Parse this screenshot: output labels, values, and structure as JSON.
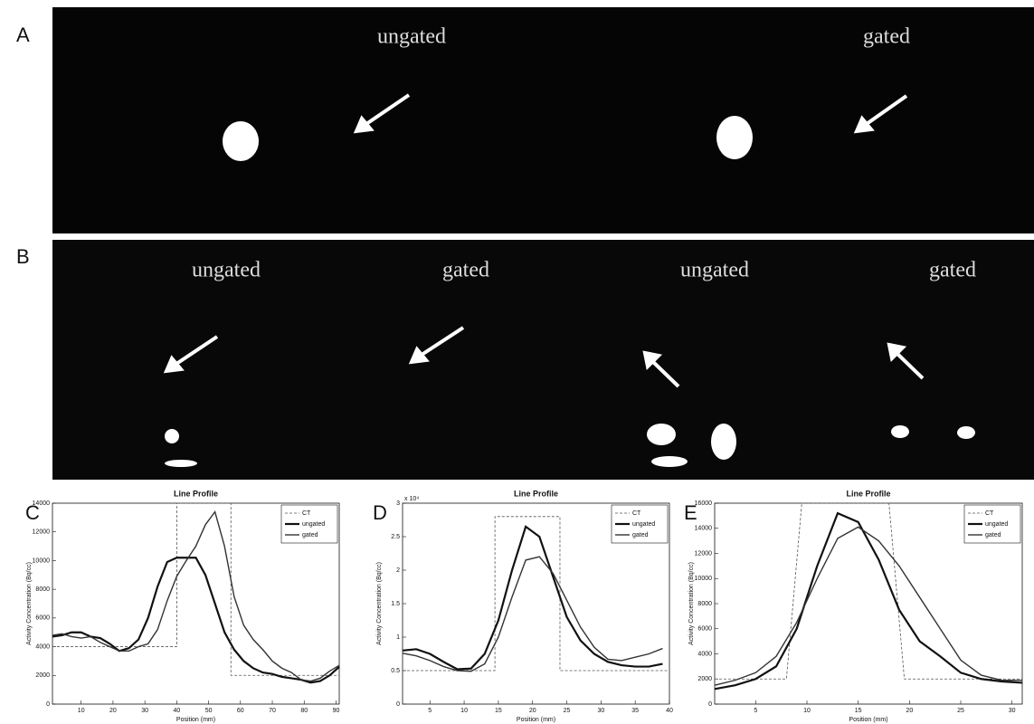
{
  "panel_labels": [
    "A",
    "B",
    "C",
    "D",
    "E"
  ],
  "image_labels": {
    "a": [
      "ungated",
      "gated"
    ],
    "b": [
      "ungated",
      "gated",
      "ungated",
      "gated"
    ]
  },
  "chart_data": [
    {
      "type": "line",
      "title": "Line Profile",
      "xlabel": "Position (mm)",
      "ylabel": "Activity Concentration (Bq/cc)",
      "xlim": [
        1,
        91
      ],
      "xticks": [
        10,
        20,
        30,
        40,
        50,
        60,
        70,
        80,
        90
      ],
      "ylim": [
        0,
        14000
      ],
      "yticks": [
        0,
        2000,
        4000,
        6000,
        8000,
        10000,
        12000,
        14000
      ],
      "legend": "upper right",
      "series": [
        {
          "name": "CT",
          "color": "#555555",
          "style": "dashed",
          "x": [
            1,
            40,
            40,
            57,
            57,
            91
          ],
          "values": [
            4000,
            4000,
            14000,
            14000,
            2000,
            2000
          ]
        },
        {
          "name": "ungated",
          "color": "#111111",
          "style": "thick",
          "x": [
            1,
            4,
            7,
            10,
            13,
            16,
            19,
            22,
            25,
            28,
            31,
            34,
            37,
            40,
            43,
            46,
            49,
            52,
            55,
            58,
            61,
            64,
            67,
            70,
            73,
            76,
            79,
            82,
            85,
            88,
            91
          ],
          "values": [
            4700,
            4800,
            5000,
            5000,
            4700,
            4600,
            4200,
            3700,
            3900,
            4500,
            6000,
            8200,
            9900,
            10200,
            10200,
            10200,
            9000,
            7000,
            5000,
            3800,
            3000,
            2500,
            2200,
            2100,
            1900,
            1800,
            1700,
            1500,
            1600,
            2000,
            2600
          ]
        },
        {
          "name": "gated",
          "color": "#333333",
          "style": "solid",
          "x": [
            1,
            4,
            7,
            10,
            13,
            16,
            19,
            22,
            25,
            28,
            31,
            34,
            37,
            40,
            43,
            46,
            49,
            52,
            55,
            58,
            61,
            64,
            67,
            70,
            73,
            76,
            79,
            82,
            85,
            88,
            91
          ],
          "values": [
            4800,
            4900,
            4700,
            4600,
            4700,
            4300,
            4000,
            3700,
            3700,
            4000,
            4200,
            5200,
            7200,
            8900,
            10000,
            11000,
            12500,
            13400,
            11000,
            7500,
            5500,
            4500,
            3800,
            3000,
            2500,
            2200,
            1700,
            1600,
            1800,
            2300,
            2700
          ]
        }
      ]
    },
    {
      "type": "line",
      "title": "Line Profile",
      "xlabel": "Position (mm)",
      "ylabel": "Activity Concentration (Bq/cc)",
      "y_exponent_label": "x 10⁴",
      "xlim": [
        1,
        40
      ],
      "xticks": [
        5,
        10,
        15,
        20,
        25,
        30,
        35,
        40
      ],
      "ylim": [
        0,
        30000
      ],
      "yticks": [
        {
          "value": 0,
          "label": "0"
        },
        {
          "value": 5000,
          "label": "0.5"
        },
        {
          "value": 10000,
          "label": "1"
        },
        {
          "value": 15000,
          "label": "1.5"
        },
        {
          "value": 20000,
          "label": "2"
        },
        {
          "value": 25000,
          "label": "2.5"
        },
        {
          "value": 30000,
          "label": "3"
        }
      ],
      "legend": "upper right",
      "series": [
        {
          "name": "CT",
          "color": "#555555",
          "style": "dashed",
          "x": [
            1,
            14.5,
            14.5,
            24,
            24,
            40
          ],
          "values": [
            5000,
            5000,
            28000,
            28000,
            5000,
            5000
          ]
        },
        {
          "name": "ungated",
          "color": "#111111",
          "style": "thick",
          "x": [
            1,
            3,
            5,
            7,
            9,
            11,
            13,
            15,
            17,
            19,
            21,
            23,
            25,
            27,
            29,
            31,
            33,
            35,
            37,
            39
          ],
          "values": [
            8000,
            8200,
            7500,
            6300,
            5200,
            5300,
            7500,
            12500,
            20000,
            26500,
            25000,
            19000,
            13000,
            9500,
            7500,
            6300,
            5800,
            5600,
            5600,
            6000
          ]
        },
        {
          "name": "gated",
          "color": "#333333",
          "style": "solid",
          "x": [
            1,
            3,
            5,
            7,
            9,
            11,
            13,
            15,
            17,
            19,
            21,
            23,
            25,
            27,
            29,
            31,
            33,
            35,
            37,
            39
          ],
          "values": [
            7600,
            7200,
            6500,
            5600,
            5000,
            4900,
            6000,
            10000,
            16000,
            21500,
            22000,
            19500,
            15500,
            11500,
            8500,
            6700,
            6500,
            7000,
            7500,
            8300
          ]
        }
      ]
    },
    {
      "type": "line",
      "title": "Line Profile",
      "xlabel": "Position (mm)",
      "ylabel": "Activity Concentration (Bq/cc)",
      "xlim": [
        1,
        31
      ],
      "xticks": [
        5,
        10,
        15,
        20,
        25,
        30
      ],
      "ylim": [
        0,
        16000
      ],
      "yticks": [
        0,
        2000,
        4000,
        6000,
        8000,
        10000,
        12000,
        14000,
        16000
      ],
      "legend": "upper right",
      "series": [
        {
          "name": "CT",
          "color": "#555555",
          "style": "dashed",
          "x": [
            1,
            8,
            9.5,
            18,
            19.5,
            31
          ],
          "values": [
            2000,
            2000,
            16000,
            16000,
            2000,
            2000
          ]
        },
        {
          "name": "ungated",
          "color": "#111111",
          "style": "thick",
          "x": [
            1,
            3,
            5,
            7,
            9,
            11,
            13,
            15,
            17,
            19,
            21,
            23,
            25,
            27,
            29,
            31
          ],
          "values": [
            1200,
            1500,
            2000,
            3000,
            6000,
            11000,
            15200,
            14500,
            11500,
            7500,
            5000,
            3800,
            2500,
            2000,
            1800,
            1700
          ]
        },
        {
          "name": "gated",
          "color": "#333333",
          "style": "solid",
          "x": [
            1,
            3,
            5,
            7,
            9,
            11,
            13,
            15,
            17,
            19,
            21,
            23,
            25,
            27,
            29,
            31
          ],
          "values": [
            1500,
            1900,
            2500,
            3800,
            6500,
            10000,
            13200,
            14100,
            13000,
            11000,
            8500,
            6000,
            3500,
            2300,
            1900,
            1900
          ]
        }
      ]
    }
  ]
}
